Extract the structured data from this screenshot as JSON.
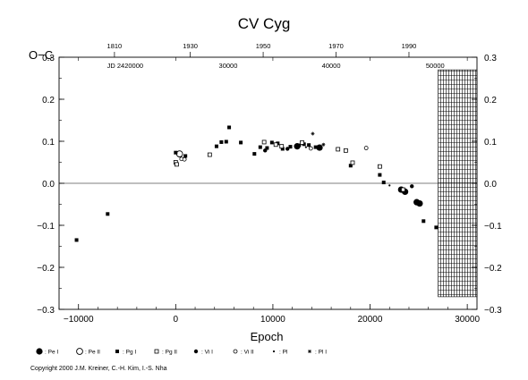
{
  "chart_data": {
    "type": "scatter",
    "title": "CV Cyg",
    "xlabel": "Epoch",
    "ylabel": "O−C",
    "xlim": [
      -12000,
      31000
    ],
    "ylim": [
      -0.3,
      0.3
    ],
    "x_ticks": [
      "−10000",
      "0",
      "10000",
      "20000",
      "30000"
    ],
    "y_ticks": [
      "−0.3",
      "−0.2",
      "−0.1",
      "0.0",
      "0.1",
      "0.2",
      "0.3"
    ],
    "top_year_ticks": [
      {
        "label": "1810",
        "epoch": -6300
      },
      {
        "label": "1930",
        "epoch": 1500
      },
      {
        "label": "1950",
        "epoch": 9000
      },
      {
        "label": "1970",
        "epoch": 16500
      },
      {
        "label": "1990",
        "epoch": 24000
      }
    ],
    "top_jd_ticks": [
      {
        "label": "JD 2420000",
        "epoch": -5200
      },
      {
        "label": "30000",
        "epoch": 5400
      },
      {
        "label": "40000",
        "epoch": 16000
      },
      {
        "label": "50000",
        "epoch": 26700
      }
    ],
    "hatched_region": [
      27000,
      31000
    ],
    "zero_line": 0.0,
    "series": [
      {
        "name": ": Pe I",
        "marker": "filled-circle-large",
        "points": [
          [
            12500,
            0.088
          ],
          [
            14800,
            0.085
          ],
          [
            23200,
            -0.015
          ],
          [
            23600,
            -0.02
          ],
          [
            24800,
            -0.045
          ],
          [
            25100,
            -0.048
          ]
        ]
      },
      {
        "name": ": Pe II",
        "marker": "open-circle-large",
        "points": [
          [
            400,
            0.07
          ]
        ]
      },
      {
        "name": ": Pg I",
        "marker": "filled-square",
        "points": [
          [
            -10200,
            -0.135
          ],
          [
            -7000,
            -0.073
          ],
          [
            0,
            0.073
          ],
          [
            1000,
            0.065
          ],
          [
            4200,
            0.088
          ],
          [
            4700,
            0.098
          ],
          [
            5200,
            0.099
          ],
          [
            5500,
            0.133
          ],
          [
            6700,
            0.097
          ],
          [
            8100,
            0.07
          ],
          [
            8700,
            0.086
          ],
          [
            9400,
            0.084
          ],
          [
            9900,
            0.097
          ],
          [
            10500,
            0.095
          ],
          [
            11000,
            0.082
          ],
          [
            11800,
            0.087
          ],
          [
            13200,
            0.093
          ],
          [
            13700,
            0.091
          ],
          [
            14400,
            0.086
          ],
          [
            18000,
            0.042
          ],
          [
            21000,
            0.02
          ],
          [
            21400,
            0.002
          ],
          [
            25500,
            -0.09
          ],
          [
            26800,
            -0.105
          ]
        ]
      },
      {
        "name": ": Pg II",
        "marker": "open-square",
        "points": [
          [
            0,
            0.05
          ],
          [
            100,
            0.045
          ],
          [
            3500,
            0.068
          ],
          [
            9100,
            0.098
          ],
          [
            10300,
            0.092
          ],
          [
            10900,
            0.088
          ],
          [
            13000,
            0.097
          ],
          [
            16700,
            0.081
          ],
          [
            17500,
            0.078
          ],
          [
            18200,
            0.049
          ],
          [
            21000,
            0.04
          ],
          [
            23400,
            -0.015
          ]
        ]
      },
      {
        "name": ": Vi I",
        "marker": "filled-circle",
        "points": [
          [
            9200,
            0.078
          ],
          [
            11500,
            0.082
          ],
          [
            12700,
            0.09
          ],
          [
            24300,
            -0.007
          ]
        ]
      },
      {
        "name": ": Vi II",
        "marker": "open-circle",
        "points": [
          [
            600,
            0.058
          ],
          [
            900,
            0.057
          ],
          [
            13900,
            0.083
          ],
          [
            19600,
            0.084
          ]
        ]
      },
      {
        "name": ": Pl",
        "marker": "dot",
        "points": [
          [
            13400,
            0.086
          ],
          [
            22000,
            -0.005
          ]
        ]
      },
      {
        "name": ": Pl I",
        "marker": "star",
        "points": [
          [
            14100,
            0.118
          ],
          [
            15200,
            0.092
          ]
        ]
      }
    ]
  },
  "copyright": "Copyright 2000 J.M. Kreiner, C.-H. Kim, I.-S. Nha"
}
